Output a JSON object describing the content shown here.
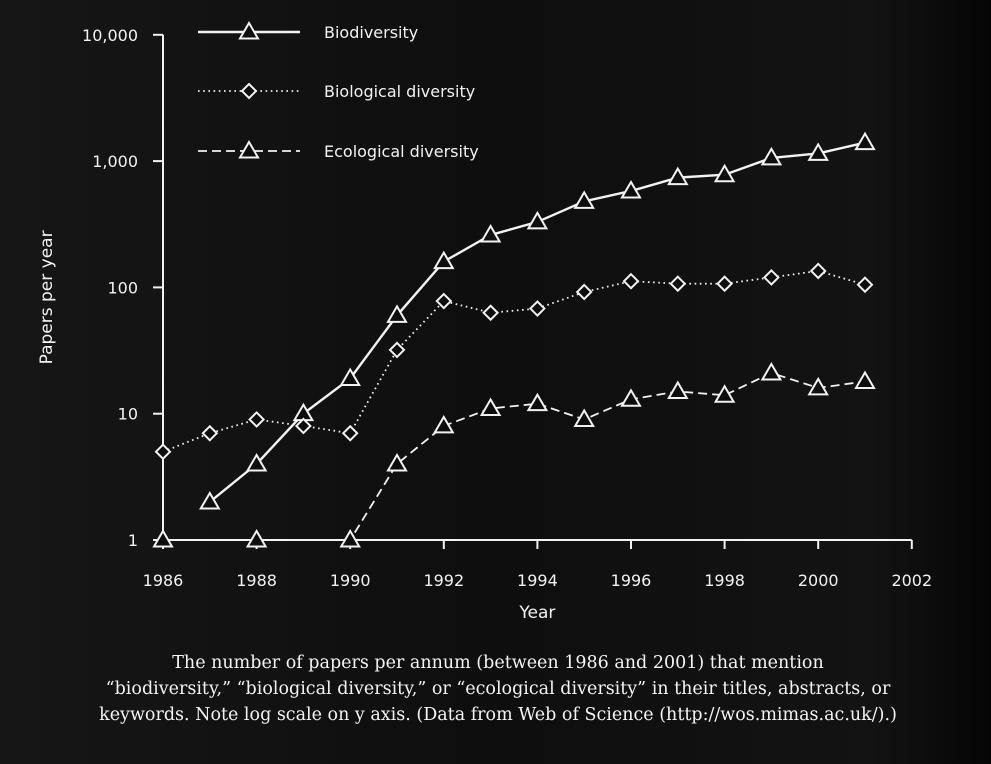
{
  "colors": {
    "background": "#0d0d0d",
    "foreground": "#f2f2f2"
  },
  "chart_data": {
    "type": "line",
    "title": "",
    "xlabel": "Year",
    "ylabel": "Papers per year",
    "y_scale": "log",
    "xlim": [
      1986,
      2002
    ],
    "ylim": [
      1,
      10000
    ],
    "x_ticks": [
      1986,
      1988,
      1990,
      1992,
      1994,
      1996,
      1998,
      2000,
      2002
    ],
    "x_tick_labels": [
      "1986",
      "1988",
      "1990",
      "1992",
      "1994",
      "1996",
      "1998",
      "2000",
      "2002"
    ],
    "y_ticks": [
      1,
      10,
      100,
      1000,
      10000
    ],
    "y_tick_labels": [
      "1",
      "10",
      "100",
      "1,000",
      "10,000"
    ],
    "legend_position": "top-left",
    "series": [
      {
        "name": "Biodiversity",
        "line_style": "solid",
        "marker": "triangle",
        "points": [
          [
            1987,
            2
          ],
          [
            1988,
            4
          ],
          [
            1989,
            10
          ],
          [
            1990,
            19
          ],
          [
            1991,
            60
          ],
          [
            1992,
            160
          ],
          [
            1993,
            260
          ],
          [
            1994,
            330
          ],
          [
            1995,
            480
          ],
          [
            1996,
            580
          ],
          [
            1997,
            740
          ],
          [
            1998,
            780
          ],
          [
            1999,
            1060
          ],
          [
            2000,
            1150
          ],
          [
            2001,
            1400
          ]
        ]
      },
      {
        "name": "Biological diversity",
        "line_style": "dotted",
        "marker": "diamond",
        "points": [
          [
            1986,
            5
          ],
          [
            1987,
            7
          ],
          [
            1988,
            9
          ],
          [
            1989,
            8
          ],
          [
            1990,
            7
          ],
          [
            1991,
            32
          ],
          [
            1992,
            78
          ],
          [
            1993,
            63
          ],
          [
            1994,
            68
          ],
          [
            1995,
            92
          ],
          [
            1996,
            112
          ],
          [
            1997,
            107
          ],
          [
            1998,
            107
          ],
          [
            1999,
            120
          ],
          [
            2000,
            135
          ],
          [
            2001,
            105
          ]
        ]
      },
      {
        "name": "Ecological diversity",
        "line_style": "dashed",
        "marker": "triangle",
        "points": [
          [
            1986,
            1
          ],
          [
            1988,
            1
          ],
          [
            1990,
            1
          ],
          [
            1991,
            4
          ],
          [
            1992,
            8
          ],
          [
            1993,
            11
          ],
          [
            1994,
            12
          ],
          [
            1995,
            9
          ],
          [
            1996,
            13
          ],
          [
            1997,
            15
          ],
          [
            1998,
            14
          ],
          [
            1999,
            21
          ],
          [
            2000,
            16
          ],
          [
            2001,
            18
          ]
        ]
      }
    ]
  },
  "caption": {
    "lines": [
      "The number of papers per annum (between 1986 and 2001) that mention",
      "“biodiversity,” “biological diversity,” or “ecological diversity” in their titles, abstracts, or",
      "keywords. Note log scale on y axis. (Data from Web of Science (http://wos.mimas.ac.uk/).)"
    ]
  }
}
